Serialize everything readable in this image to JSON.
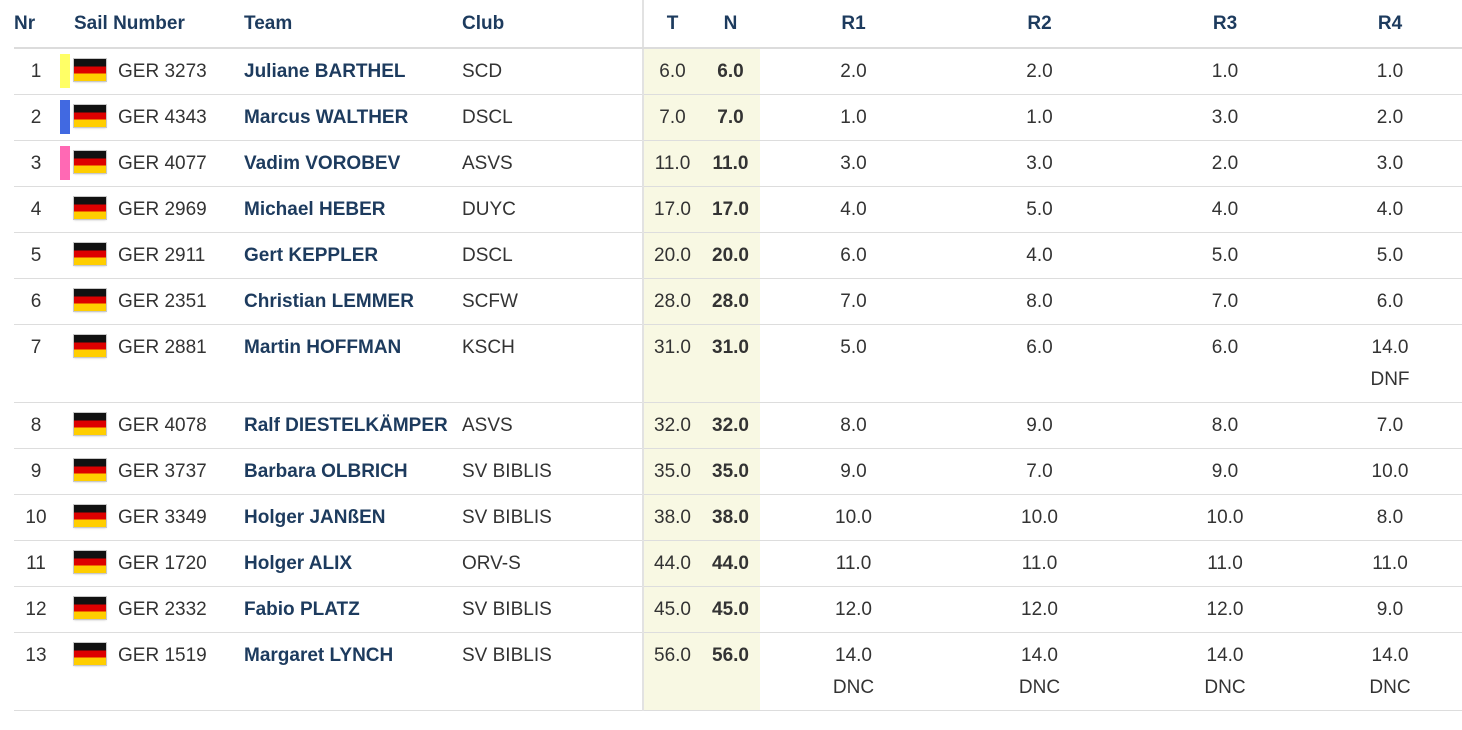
{
  "colors": {
    "header_text": "#1d3b5e",
    "highlight_column": "#f8f8e3",
    "bar_yellow": "#ffff66",
    "bar_blue": "#4169e1",
    "bar_pink": "#ff69b4"
  },
  "headers": {
    "nr": "Nr",
    "sail_number": "Sail Number",
    "team": "Team",
    "club": "Club",
    "t": "T",
    "n": "N",
    "r1": "R1",
    "r2": "R2",
    "r3": "R3",
    "r4": "R4"
  },
  "rows": [
    {
      "nr": "1",
      "bar": "yellow",
      "flag": "germany-flag-icon",
      "sail": "GER 3273",
      "team": "Juliane BARTHEL",
      "club": "SCD",
      "t": "6.0",
      "n": "6.0",
      "r1": "2.0",
      "r1_code": "",
      "r2": "2.0",
      "r2_code": "",
      "r3": "1.0",
      "r3_code": "",
      "r4": "1.0",
      "r4_code": ""
    },
    {
      "nr": "2",
      "bar": "blue",
      "flag": "germany-flag-icon",
      "sail": "GER 4343",
      "team": "Marcus WALTHER",
      "club": "DSCL",
      "t": "7.0",
      "n": "7.0",
      "r1": "1.0",
      "r1_code": "",
      "r2": "1.0",
      "r2_code": "",
      "r3": "3.0",
      "r3_code": "",
      "r4": "2.0",
      "r4_code": ""
    },
    {
      "nr": "3",
      "bar": "pink",
      "flag": "germany-flag-icon",
      "sail": "GER 4077",
      "team": "Vadim VOROBEV",
      "club": "ASVS",
      "t": "11.0",
      "n": "11.0",
      "r1": "3.0",
      "r1_code": "",
      "r2": "3.0",
      "r2_code": "",
      "r3": "2.0",
      "r3_code": "",
      "r4": "3.0",
      "r4_code": ""
    },
    {
      "nr": "4",
      "bar": "",
      "flag": "germany-flag-icon",
      "sail": "GER 2969",
      "team": "Michael HEBER",
      "club": "DUYC",
      "t": "17.0",
      "n": "17.0",
      "r1": "4.0",
      "r1_code": "",
      "r2": "5.0",
      "r2_code": "",
      "r3": "4.0",
      "r3_code": "",
      "r4": "4.0",
      "r4_code": ""
    },
    {
      "nr": "5",
      "bar": "",
      "flag": "germany-flag-icon",
      "sail": "GER 2911",
      "team": "Gert KEPPLER",
      "club": "DSCL",
      "t": "20.0",
      "n": "20.0",
      "r1": "6.0",
      "r1_code": "",
      "r2": "4.0",
      "r2_code": "",
      "r3": "5.0",
      "r3_code": "",
      "r4": "5.0",
      "r4_code": ""
    },
    {
      "nr": "6",
      "bar": "",
      "flag": "germany-flag-icon",
      "sail": "GER 2351",
      "team": "Christian LEMMER",
      "club": "SCFW",
      "t": "28.0",
      "n": "28.0",
      "r1": "7.0",
      "r1_code": "",
      "r2": "8.0",
      "r2_code": "",
      "r3": "7.0",
      "r3_code": "",
      "r4": "6.0",
      "r4_code": ""
    },
    {
      "nr": "7",
      "bar": "",
      "flag": "germany-flag-icon",
      "sail": "GER 2881",
      "team": "Martin HOFFMAN",
      "club": "KSCH",
      "t": "31.0",
      "n": "31.0",
      "r1": "5.0",
      "r1_code": "",
      "r2": "6.0",
      "r2_code": "",
      "r3": "6.0",
      "r3_code": "",
      "r4": "14.0",
      "r4_code": "DNF"
    },
    {
      "nr": "8",
      "bar": "",
      "flag": "germany-flag-icon",
      "sail": "GER 4078",
      "team": "Ralf DIESTELKÄMPER",
      "club": "ASVS",
      "t": "32.0",
      "n": "32.0",
      "r1": "8.0",
      "r1_code": "",
      "r2": "9.0",
      "r2_code": "",
      "r3": "8.0",
      "r3_code": "",
      "r4": "7.0",
      "r4_code": ""
    },
    {
      "nr": "9",
      "bar": "",
      "flag": "germany-flag-icon",
      "sail": "GER 3737",
      "team": "Barbara OLBRICH",
      "club": "SV BIBLIS",
      "t": "35.0",
      "n": "35.0",
      "r1": "9.0",
      "r1_code": "",
      "r2": "7.0",
      "r2_code": "",
      "r3": "9.0",
      "r3_code": "",
      "r4": "10.0",
      "r4_code": ""
    },
    {
      "nr": "10",
      "bar": "",
      "flag": "germany-flag-icon",
      "sail": "GER 3349",
      "team": "Holger JANßEN",
      "club": "SV BIBLIS",
      "t": "38.0",
      "n": "38.0",
      "r1": "10.0",
      "r1_code": "",
      "r2": "10.0",
      "r2_code": "",
      "r3": "10.0",
      "r3_code": "",
      "r4": "8.0",
      "r4_code": ""
    },
    {
      "nr": "11",
      "bar": "",
      "flag": "germany-flag-icon",
      "sail": "GER 1720",
      "team": "Holger ALIX",
      "club": "ORV-S",
      "t": "44.0",
      "n": "44.0",
      "r1": "11.0",
      "r1_code": "",
      "r2": "11.0",
      "r2_code": "",
      "r3": "11.0",
      "r3_code": "",
      "r4": "11.0",
      "r4_code": ""
    },
    {
      "nr": "12",
      "bar": "",
      "flag": "germany-flag-icon",
      "sail": "GER 2332",
      "team": "Fabio PLATZ",
      "club": "SV BIBLIS",
      "t": "45.0",
      "n": "45.0",
      "r1": "12.0",
      "r1_code": "",
      "r2": "12.0",
      "r2_code": "",
      "r3": "12.0",
      "r3_code": "",
      "r4": "9.0",
      "r4_code": ""
    },
    {
      "nr": "13",
      "bar": "",
      "flag": "germany-flag-icon",
      "sail": "GER 1519",
      "team": "Margaret LYNCH",
      "club": "SV BIBLIS",
      "t": "56.0",
      "n": "56.0",
      "r1": "14.0",
      "r1_code": "DNC",
      "r2": "14.0",
      "r2_code": "DNC",
      "r3": "14.0",
      "r3_code": "DNC",
      "r4": "14.0",
      "r4_code": "DNC"
    }
  ]
}
